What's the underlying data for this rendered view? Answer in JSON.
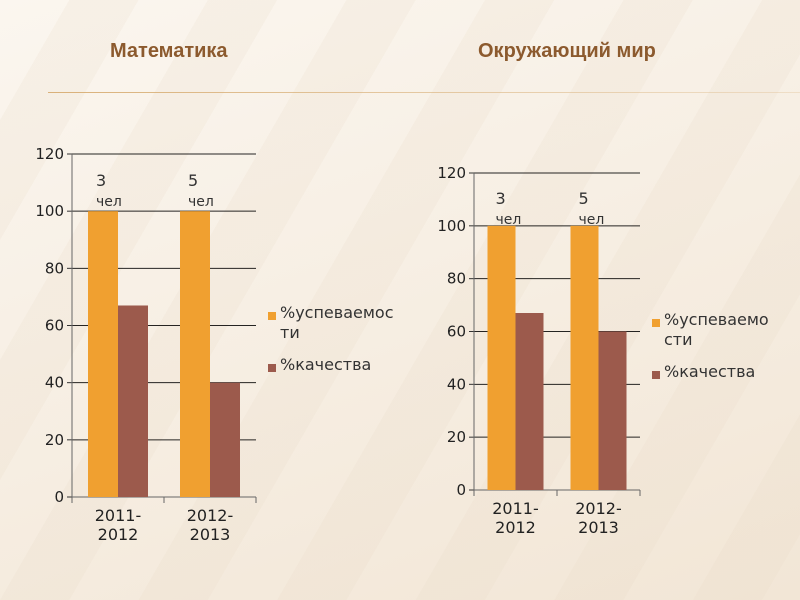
{
  "slide": {
    "title_left": "Математика",
    "title_right": "Окружающий мир"
  },
  "colors": {
    "series1": "#f0a030",
    "series2": "#9c5a4c",
    "title": "#8c5a2e"
  },
  "chart_data": [
    {
      "type": "bar",
      "categories": [
        "2011-2012",
        "2012-2013"
      ],
      "series": [
        {
          "name": "%успеваемости",
          "values": [
            100,
            100
          ]
        },
        {
          "name": "%качества",
          "values": [
            67,
            40
          ]
        }
      ],
      "annotations": [
        "3 чел",
        "5 чел"
      ],
      "ylim": [
        0,
        120
      ],
      "yticks": [
        0,
        20,
        40,
        60,
        80,
        100,
        120
      ],
      "grid": true,
      "legend": "right"
    },
    {
      "type": "bar",
      "categories": [
        "2011-2012",
        "2012-2013"
      ],
      "series": [
        {
          "name": "%успеваемости",
          "values": [
            100,
            100
          ]
        },
        {
          "name": "%качества",
          "values": [
            67,
            60
          ]
        }
      ],
      "annotations": [
        "3 чел",
        "5 чел"
      ],
      "ylim": [
        0,
        120
      ],
      "yticks": [
        0,
        20,
        40,
        60,
        80,
        100,
        120
      ],
      "grid": true,
      "legend": "right"
    }
  ]
}
